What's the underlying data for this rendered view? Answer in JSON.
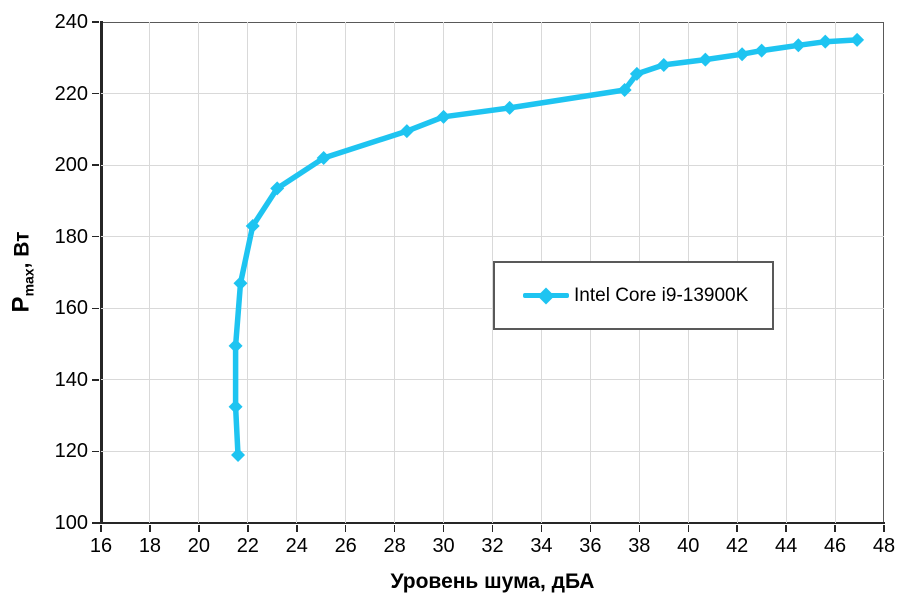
{
  "chart_data": {
    "type": "line",
    "title": "",
    "xlabel": "Уровень шума, дБА",
    "ylabel": {
      "main": "P",
      "sub": "max",
      "rest": ", Вт"
    },
    "xlim": [
      16,
      48
    ],
    "xtick_step": 2,
    "ylim": [
      100,
      240
    ],
    "ytick_step": 20,
    "grid": true,
    "legend_position": "inside-center-right",
    "series": [
      {
        "name": "Intel Core i9-13900K",
        "color": "#1EC4F1",
        "marker": "diamond",
        "points": [
          [
            21.6,
            119
          ],
          [
            21.5,
            132.5
          ],
          [
            21.5,
            149.5
          ],
          [
            21.7,
            167
          ],
          [
            22.2,
            183
          ],
          [
            23.2,
            193.5
          ],
          [
            25.1,
            202
          ],
          [
            28.5,
            209.5
          ],
          [
            30.0,
            213.5
          ],
          [
            32.7,
            216
          ],
          [
            37.4,
            221
          ],
          [
            37.9,
            225.5
          ],
          [
            39.0,
            228
          ],
          [
            40.7,
            229.5
          ],
          [
            42.2,
            231
          ],
          [
            43.0,
            232
          ],
          [
            44.5,
            233.5
          ],
          [
            45.6,
            234.5
          ],
          [
            46.9,
            235
          ]
        ]
      }
    ],
    "colors": {
      "grid": "#D9D9D9",
      "axis": "#262626",
      "plot_border": "#595959",
      "text": "#000000"
    }
  }
}
